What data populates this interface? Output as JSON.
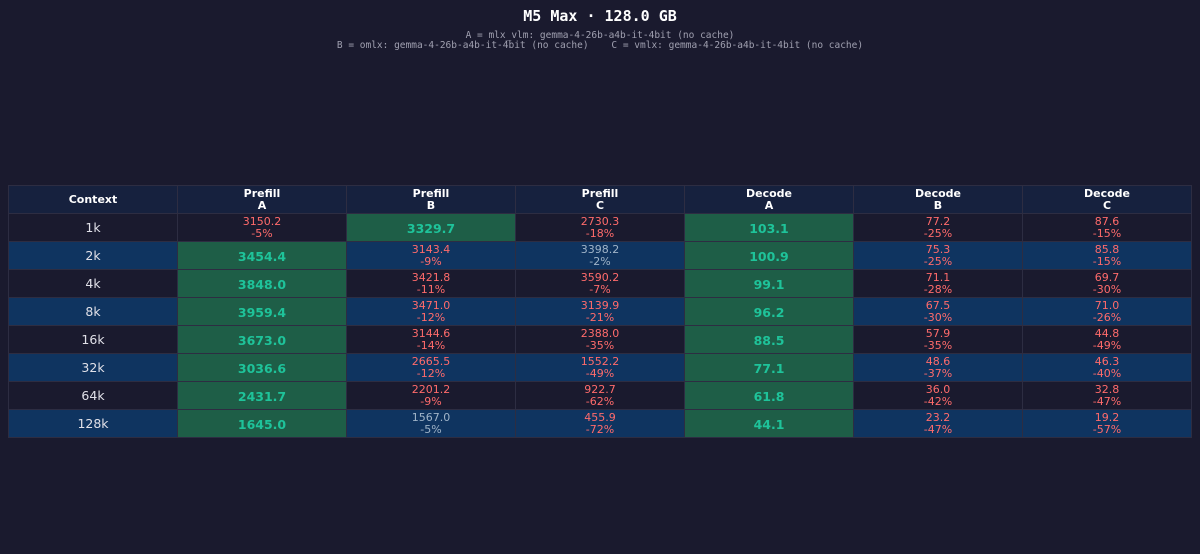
{
  "title": "M5 Max · 128.0 GB",
  "legend_line_1": "A = mlx_vlm: gemma-4-26b-a4b-it-4bit (no cache)",
  "legend_line_2": "B = omlx: gemma-4-26b-a4b-it-4bit (no cache)    C = vmlx: gemma-4-26b-a4b-it-4bit (no cache)",
  "colors": {
    "background": "#1a1a2e",
    "header": "#16213e",
    "row_alt": "#0f3460",
    "winner_fill": "#1e5e47",
    "winner_text": "#1ec39a",
    "loss_text": "#ff6b6b",
    "neutral_text": "#a0b4c8"
  },
  "chart_data": {
    "type": "table",
    "title": "M5 Max · 128.0 GB",
    "columns": [
      {
        "line1": "Context",
        "line2": ""
      },
      {
        "line1": "Prefill",
        "line2": "A"
      },
      {
        "line1": "Prefill",
        "line2": "B"
      },
      {
        "line1": "Prefill",
        "line2": "C"
      },
      {
        "line1": "Decode",
        "line2": "A"
      },
      {
        "line1": "Decode",
        "line2": "B"
      },
      {
        "line1": "Decode",
        "line2": "C"
      }
    ],
    "rows": [
      {
        "context": "1k",
        "cells": [
          {
            "value": "3150.2",
            "pct": "-5%",
            "tone": "neg",
            "winner": false
          },
          {
            "value": "3329.7",
            "pct": "",
            "tone": "win",
            "winner": true
          },
          {
            "value": "2730.3",
            "pct": "-18%",
            "tone": "neg",
            "winner": false
          },
          {
            "value": "103.1",
            "pct": "",
            "tone": "win",
            "winner": true
          },
          {
            "value": "77.2",
            "pct": "-25%",
            "tone": "neg",
            "winner": false
          },
          {
            "value": "87.6",
            "pct": "-15%",
            "tone": "neg",
            "winner": false
          }
        ]
      },
      {
        "context": "2k",
        "cells": [
          {
            "value": "3454.4",
            "pct": "",
            "tone": "win",
            "winner": true
          },
          {
            "value": "3143.4",
            "pct": "-9%",
            "tone": "neg",
            "winner": false
          },
          {
            "value": "3398.2",
            "pct": "-2%",
            "tone": "mild",
            "winner": false
          },
          {
            "value": "100.9",
            "pct": "",
            "tone": "win",
            "winner": true
          },
          {
            "value": "75.3",
            "pct": "-25%",
            "tone": "neg",
            "winner": false
          },
          {
            "value": "85.8",
            "pct": "-15%",
            "tone": "neg",
            "winner": false
          }
        ]
      },
      {
        "context": "4k",
        "cells": [
          {
            "value": "3848.0",
            "pct": "",
            "tone": "win",
            "winner": true
          },
          {
            "value": "3421.8",
            "pct": "-11%",
            "tone": "neg",
            "winner": false
          },
          {
            "value": "3590.2",
            "pct": "-7%",
            "tone": "neg",
            "winner": false
          },
          {
            "value": "99.1",
            "pct": "",
            "tone": "win",
            "winner": true
          },
          {
            "value": "71.1",
            "pct": "-28%",
            "tone": "neg",
            "winner": false
          },
          {
            "value": "69.7",
            "pct": "-30%",
            "tone": "neg",
            "winner": false
          }
        ]
      },
      {
        "context": "8k",
        "cells": [
          {
            "value": "3959.4",
            "pct": "",
            "tone": "win",
            "winner": true
          },
          {
            "value": "3471.0",
            "pct": "-12%",
            "tone": "neg",
            "winner": false
          },
          {
            "value": "3139.9",
            "pct": "-21%",
            "tone": "neg",
            "winner": false
          },
          {
            "value": "96.2",
            "pct": "",
            "tone": "win",
            "winner": true
          },
          {
            "value": "67.5",
            "pct": "-30%",
            "tone": "neg",
            "winner": false
          },
          {
            "value": "71.0",
            "pct": "-26%",
            "tone": "neg",
            "winner": false
          }
        ]
      },
      {
        "context": "16k",
        "cells": [
          {
            "value": "3673.0",
            "pct": "",
            "tone": "win",
            "winner": true
          },
          {
            "value": "3144.6",
            "pct": "-14%",
            "tone": "neg",
            "winner": false
          },
          {
            "value": "2388.0",
            "pct": "-35%",
            "tone": "neg",
            "winner": false
          },
          {
            "value": "88.5",
            "pct": "",
            "tone": "win",
            "winner": true
          },
          {
            "value": "57.9",
            "pct": "-35%",
            "tone": "neg",
            "winner": false
          },
          {
            "value": "44.8",
            "pct": "-49%",
            "tone": "neg",
            "winner": false
          }
        ]
      },
      {
        "context": "32k",
        "cells": [
          {
            "value": "3036.6",
            "pct": "",
            "tone": "win",
            "winner": true
          },
          {
            "value": "2665.5",
            "pct": "-12%",
            "tone": "neg",
            "winner": false
          },
          {
            "value": "1552.2",
            "pct": "-49%",
            "tone": "neg",
            "winner": false
          },
          {
            "value": "77.1",
            "pct": "",
            "tone": "win",
            "winner": true
          },
          {
            "value": "48.6",
            "pct": "-37%",
            "tone": "neg",
            "winner": false
          },
          {
            "value": "46.3",
            "pct": "-40%",
            "tone": "neg",
            "winner": false
          }
        ]
      },
      {
        "context": "64k",
        "cells": [
          {
            "value": "2431.7",
            "pct": "",
            "tone": "win",
            "winner": true
          },
          {
            "value": "2201.2",
            "pct": "-9%",
            "tone": "neg",
            "winner": false
          },
          {
            "value": "922.7",
            "pct": "-62%",
            "tone": "neg",
            "winner": false
          },
          {
            "value": "61.8",
            "pct": "",
            "tone": "win",
            "winner": true
          },
          {
            "value": "36.0",
            "pct": "-42%",
            "tone": "neg",
            "winner": false
          },
          {
            "value": "32.8",
            "pct": "-47%",
            "tone": "neg",
            "winner": false
          }
        ]
      },
      {
        "context": "128k",
        "cells": [
          {
            "value": "1645.0",
            "pct": "",
            "tone": "win",
            "winner": true
          },
          {
            "value": "1567.0",
            "pct": "-5%",
            "tone": "mild",
            "winner": false
          },
          {
            "value": "455.9",
            "pct": "-72%",
            "tone": "neg",
            "winner": false
          },
          {
            "value": "44.1",
            "pct": "",
            "tone": "win",
            "winner": true
          },
          {
            "value": "23.2",
            "pct": "-47%",
            "tone": "neg",
            "winner": false
          },
          {
            "value": "19.2",
            "pct": "-57%",
            "tone": "neg",
            "winner": false
          }
        ]
      }
    ]
  }
}
